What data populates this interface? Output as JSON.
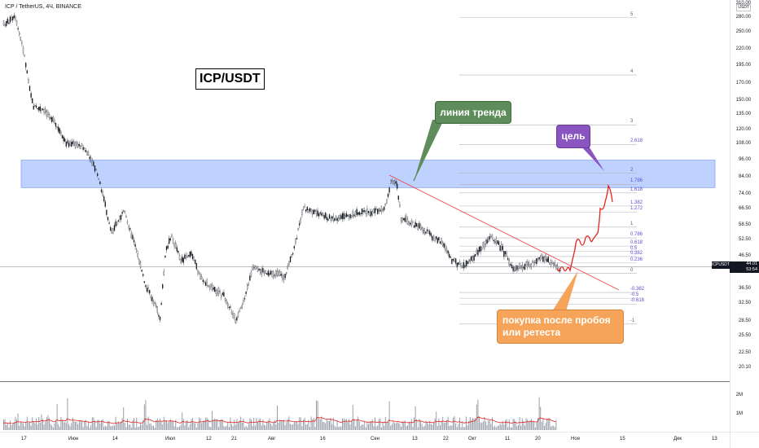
{
  "header": {
    "ticker": "ICP / TetherUS, 4Ч, BINANCE",
    "currency": "USDT"
  },
  "title": "ICP/USDT",
  "annotations": {
    "trend_line": "линия тренда",
    "target": "цель",
    "buy": "покупка после пробоя или ретеста"
  },
  "price_tag": {
    "symbol": "ICPUSDT",
    "price": "44.01",
    "countdown": "53:54"
  },
  "colors": {
    "resistance_zone": "#b3c9ff",
    "trend_line": "#e5484d",
    "projection": "#e5241f",
    "trend_callout": "#5e8c5a",
    "target_callout": "#8a54c1",
    "buy_callout": "#f5a45a",
    "volume_ma": "#e5241f"
  },
  "y_axis": [
    {
      "label": "310.00",
      "price": 310
    },
    {
      "label": "280.00",
      "price": 280
    },
    {
      "label": "250.00",
      "price": 250
    },
    {
      "label": "220.00",
      "price": 220
    },
    {
      "label": "195.00",
      "price": 195
    },
    {
      "label": "170.00",
      "price": 170
    },
    {
      "label": "150.00",
      "price": 150
    },
    {
      "label": "135.00",
      "price": 135
    },
    {
      "label": "120.00",
      "price": 120
    },
    {
      "label": "108.00",
      "price": 108
    },
    {
      "label": "96.00",
      "price": 96
    },
    {
      "label": "84.00",
      "price": 84
    },
    {
      "label": "74.00",
      "price": 74
    },
    {
      "label": "66.50",
      "price": 66.5
    },
    {
      "label": "58.50",
      "price": 58.5
    },
    {
      "label": "52.50",
      "price": 52.5
    },
    {
      "label": "46.50",
      "price": 46.5
    },
    {
      "label": "36.50",
      "price": 36.5
    },
    {
      "label": "32.50",
      "price": 32.5
    },
    {
      "label": "28.50",
      "price": 28.5
    },
    {
      "label": "25.50",
      "price": 25.5
    },
    {
      "label": "22.50",
      "price": 22.5
    },
    {
      "label": "20.10",
      "price": 20.1
    }
  ],
  "volume_axis": [
    "2M",
    "1M"
  ],
  "x_axis": [
    "17",
    "Июн",
    "14",
    "Июл",
    "12",
    "21",
    "Авг",
    "16",
    "Сен",
    "13",
    "22",
    "Окт",
    "11",
    "20",
    "Ноя",
    "15",
    "Дек",
    "13"
  ],
  "fib_levels": [
    {
      "label": "5",
      "price": 280,
      "violet": false
    },
    {
      "label": "4",
      "price": 182,
      "violet": false
    },
    {
      "label": "3",
      "price": 125,
      "violet": false
    },
    {
      "label": "2.618",
      "price": 108,
      "violet": true
    },
    {
      "label": "2",
      "price": 87,
      "violet": false
    },
    {
      "label": "1.786",
      "price": 80,
      "violet": true
    },
    {
      "label": "1.618",
      "price": 75,
      "violet": true
    },
    {
      "label": "1.382",
      "price": 68,
      "violet": true
    },
    {
      "label": "1.272",
      "price": 65,
      "violet": true
    },
    {
      "label": "1",
      "price": 58,
      "violet": false
    },
    {
      "label": "0.786",
      "price": 53.5,
      "violet": true
    },
    {
      "label": "0.618",
      "price": 50.3,
      "violet": true
    },
    {
      "label": "0.5",
      "price": 48.3,
      "violet": true
    },
    {
      "label": "0.382",
      "price": 46.5,
      "violet": true
    },
    {
      "label": "0.236",
      "price": 44.3,
      "violet": true
    },
    {
      "label": "0",
      "price": 41,
      "violet": false
    },
    {
      "label": "-0.382",
      "price": 35.5,
      "violet": true
    },
    {
      "label": "-0.5",
      "price": 34,
      "violet": true
    },
    {
      "label": "-0.618",
      "price": 32.5,
      "violet": true
    },
    {
      "label": "-1",
      "price": 28,
      "violet": false
    }
  ]
}
